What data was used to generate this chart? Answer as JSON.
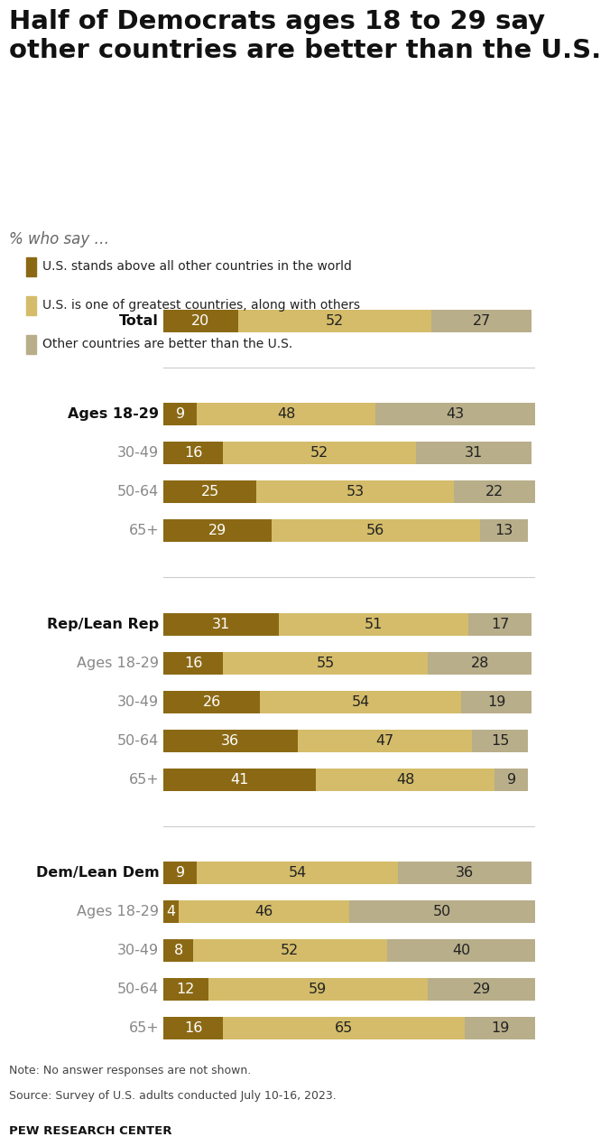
{
  "title": "Half of Democrats ages 18 to 29 say\nother countries are better than the U.S.",
  "subtitle": "% who say …",
  "legend_labels": [
    "U.S. stands above all other countries in the world",
    "U.S. is one of greatest countries, along with others",
    "Other countries are better than the U.S."
  ],
  "colors": [
    "#8B6914",
    "#D4BC6A",
    "#B8AE8A"
  ],
  "note_line1": "Note: No answer responses are not shown.",
  "note_line2": "Source: Survey of U.S. adults conducted July 10-16, 2023.",
  "source_bold": "PEW RESEARCH CENTER",
  "groups": [
    {
      "label": "Total",
      "label_bold": true,
      "values": [
        20,
        52,
        27
      ]
    },
    {
      "label": "Ages 18-29",
      "label_bold": true,
      "values": [
        9,
        48,
        43
      ]
    },
    {
      "label": "30-49",
      "label_bold": false,
      "values": [
        16,
        52,
        31
      ]
    },
    {
      "label": "50-64",
      "label_bold": false,
      "values": [
        25,
        53,
        22
      ]
    },
    {
      "label": "65+",
      "label_bold": false,
      "values": [
        29,
        56,
        13
      ]
    },
    {
      "label": "Rep/Lean Rep",
      "label_bold": true,
      "values": [
        31,
        51,
        17
      ]
    },
    {
      "label": "Ages 18-29",
      "label_bold": false,
      "values": [
        16,
        55,
        28
      ]
    },
    {
      "label": "30-49",
      "label_bold": false,
      "values": [
        26,
        54,
        19
      ]
    },
    {
      "label": "50-64",
      "label_bold": false,
      "values": [
        36,
        47,
        15
      ]
    },
    {
      "label": "65+",
      "label_bold": false,
      "values": [
        41,
        48,
        9
      ]
    },
    {
      "label": "Dem/Lean Dem",
      "label_bold": true,
      "values": [
        9,
        54,
        36
      ]
    },
    {
      "label": "Ages 18-29",
      "label_bold": false,
      "values": [
        4,
        46,
        50
      ]
    },
    {
      "label": "30-49",
      "label_bold": false,
      "values": [
        8,
        52,
        40
      ]
    },
    {
      "label": "50-64",
      "label_bold": false,
      "values": [
        12,
        59,
        29
      ]
    },
    {
      "label": "65+",
      "label_bold": false,
      "values": [
        16,
        65,
        19
      ]
    }
  ],
  "separators_after": [
    0,
    4,
    9
  ],
  "background_color": "#FFFFFF",
  "bar_height": 0.58,
  "bar_text_fontsize": 11.5,
  "label_fontsize": 11.5,
  "title_fontsize": 21,
  "subtitle_fontsize": 12
}
